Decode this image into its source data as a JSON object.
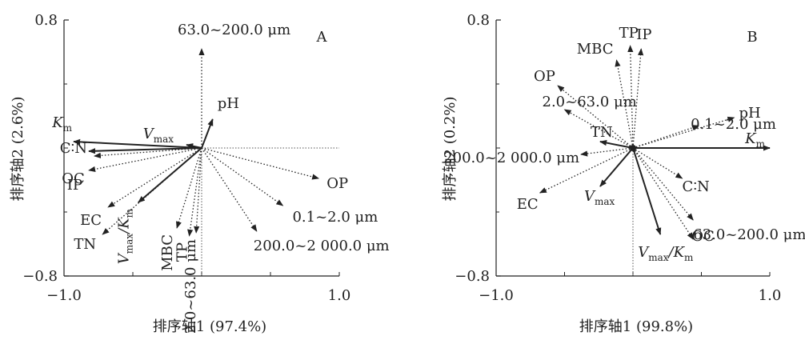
{
  "chart_data": [
    {
      "type": "scatter",
      "panel": "A",
      "xlabel": "排序轴1 (97.4%)",
      "ylabel": "排序轴2 (2.6%)",
      "xlim": [
        -1.0,
        1.0
      ],
      "ylim": [
        -0.8,
        0.8
      ],
      "x_ticks": [
        "−1.0",
        "1.0"
      ],
      "y_ticks": [
        "0.8",
        "−0.8"
      ],
      "vectors": [
        {
          "id": "km",
          "label": "K",
          "sub": "m",
          "x": -0.93,
          "y": 0.04,
          "style": "solid"
        },
        {
          "id": "vmax",
          "label": "V",
          "sub": "max",
          "x": -0.11,
          "y": 0.02,
          "style": "solid"
        },
        {
          "id": "cn",
          "label": "C∶N",
          "x": -0.82,
          "y": -0.02,
          "style": "solid"
        },
        {
          "id": "oc",
          "label": "OC",
          "x": -0.78,
          "y": -0.05,
          "style": "dotted"
        },
        {
          "id": "ip",
          "label": "IP",
          "x": -0.82,
          "y": -0.14,
          "style": "dotted"
        },
        {
          "id": "ec",
          "label": "EC",
          "x": -0.68,
          "y": -0.37,
          "style": "dotted"
        },
        {
          "id": "tn",
          "label": "TN",
          "x": -0.72,
          "y": -0.54,
          "style": "dotted"
        },
        {
          "id": "vmaxkm",
          "label": "V",
          "sub": "max",
          "label2": "/K",
          "sub2": "m",
          "x": -0.46,
          "y": -0.34,
          "style": "solid"
        },
        {
          "id": "mbc",
          "label": "MBC",
          "x": -0.18,
          "y": -0.5,
          "style": "dotted"
        },
        {
          "id": "tp",
          "label": "TP",
          "x": -0.09,
          "y": -0.55,
          "style": "dotted"
        },
        {
          "id": "s2",
          "label": "2.0~63.0 μm",
          "x": -0.04,
          "y": -0.53,
          "style": "dotted"
        },
        {
          "id": "s200",
          "label": "200.0~2 000.0 μm",
          "x": 0.4,
          "y": -0.52,
          "style": "dotted"
        },
        {
          "id": "s01",
          "label": "0.1~2.0 μm",
          "x": 0.59,
          "y": -0.36,
          "style": "dotted"
        },
        {
          "id": "op",
          "label": "OP",
          "x": 0.85,
          "y": -0.19,
          "style": "dotted"
        },
        {
          "id": "ph",
          "label": "pH",
          "x": 0.08,
          "y": 0.18,
          "style": "solid"
        },
        {
          "id": "s63",
          "label": "63.0~200.0 μm",
          "x": 0.0,
          "y": 0.62,
          "style": "dotted"
        }
      ]
    },
    {
      "type": "scatter",
      "panel": "B",
      "xlabel": "排序轴1 (99.8%)",
      "ylabel": "排序轴2 (0.2%)",
      "xlim": [
        -1.0,
        1.0
      ],
      "ylim": [
        -0.8,
        0.8
      ],
      "x_ticks": [
        "−1.0",
        "1.0"
      ],
      "y_ticks": [
        "0.8",
        "−0.8"
      ],
      "vectors": [
        {
          "id": "km",
          "label": "K",
          "sub": "m",
          "x": 1.0,
          "y": 0.0,
          "style": "solid"
        },
        {
          "id": "ph",
          "label": "pH",
          "x": 0.74,
          "y": 0.19,
          "style": "dotted"
        },
        {
          "id": "s01",
          "label": "0.1~2.0 μm",
          "x": 0.48,
          "y": 0.14,
          "style": "dotted"
        },
        {
          "id": "ip",
          "label": "IP",
          "x": 0.06,
          "y": 0.62,
          "style": "dotted"
        },
        {
          "id": "tp",
          "label": "TP",
          "x": -0.02,
          "y": 0.64,
          "style": "dotted"
        },
        {
          "id": "mbc",
          "label": "MBC",
          "x": -0.12,
          "y": 0.55,
          "style": "dotted"
        },
        {
          "id": "op",
          "label": "OP",
          "x": -0.55,
          "y": 0.39,
          "style": "dotted"
        },
        {
          "id": "s2",
          "label": "2.0~63.0 μm",
          "x": -0.5,
          "y": 0.24,
          "style": "dotted"
        },
        {
          "id": "tn",
          "label": "TN",
          "x": -0.24,
          "y": 0.04,
          "style": "solid"
        },
        {
          "id": "s200",
          "label": "200.0~2 000.0 μm",
          "x": -0.38,
          "y": -0.04,
          "style": "dotted"
        },
        {
          "id": "ec",
          "label": "EC",
          "x": -0.68,
          "y": -0.28,
          "style": "dotted"
        },
        {
          "id": "vmax",
          "label": "V",
          "sub": "max",
          "x": -0.24,
          "y": -0.24,
          "style": "solid"
        },
        {
          "id": "cn",
          "label": "C∶N",
          "x": 0.36,
          "y": -0.19,
          "style": "dotted"
        },
        {
          "id": "oc",
          "label": "OC",
          "x": 0.44,
          "y": -0.45,
          "style": "dotted"
        },
        {
          "id": "vmaxkm",
          "label": "V",
          "sub": "max",
          "label2": "/K",
          "sub2": "m",
          "x": 0.2,
          "y": -0.54,
          "style": "solid"
        },
        {
          "id": "s63",
          "label": "63.0~200.0 μm",
          "x": 0.44,
          "y": -0.57,
          "style": "dotted"
        }
      ]
    }
  ]
}
